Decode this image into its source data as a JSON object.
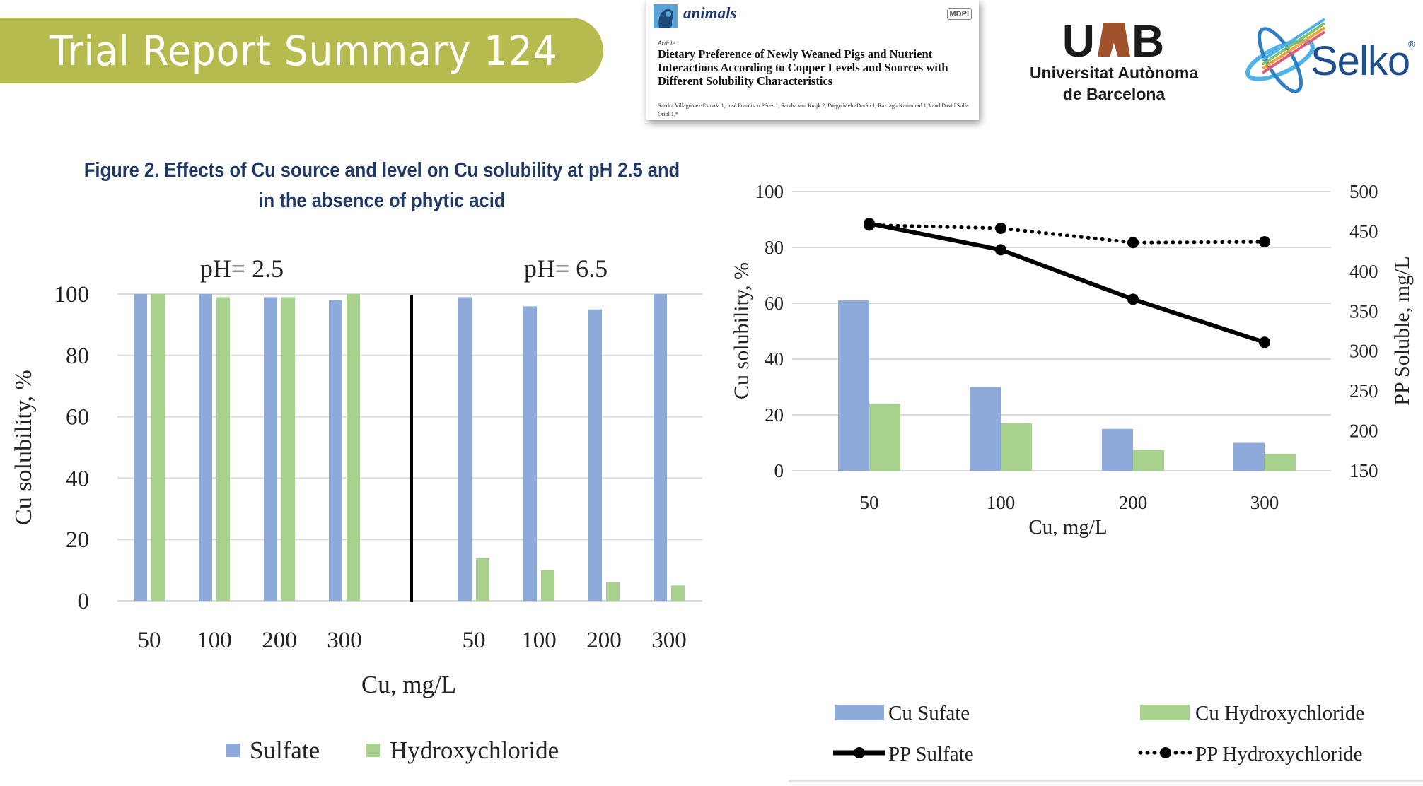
{
  "header": {
    "banner_title": "Trial Report Summary 124",
    "banner_color": "#b5bb4f"
  },
  "paper": {
    "journal": "animals",
    "publisher_badge": "MDPI",
    "type": "Article",
    "title": "Dietary Preference of Newly Weaned Pigs and Nutrient Interactions According to Copper Levels and Sources with Different Solubility Characteristics",
    "authors": "Sandra Villagómez-Estrada 1, José Francisco Pérez 1, Sandra van Kuijk 2, Diego Melo-Durán 1, Razzagh Karimirad 1,3 and David Solà-Oriol 1,*"
  },
  "logos": {
    "uab_mark": "UAB",
    "uab_name_line1": "Universitat Autònoma",
    "uab_name_line2": "de Barcelona",
    "selko_word": "Selko",
    "selko_reg": "®"
  },
  "figure": {
    "title_line1": "Figure 2. Effects of Cu source and level on Cu solubility at pH 2.5 and",
    "title_line2": "in the absence of phytic acid"
  },
  "colors": {
    "sulfate": "#8eaadb",
    "hydroxychloride": "#a9d18e",
    "line": "#000000",
    "grid": "#d9d9d9",
    "title": "#1f3864"
  },
  "chart_data": [
    {
      "type": "bar",
      "title": "",
      "groups": [
        "pH= 2.5",
        "pH= 6.5"
      ],
      "categories": [
        "50",
        "100",
        "200",
        "300",
        "50",
        "100",
        "200",
        "300"
      ],
      "series": [
        {
          "name": "Sulfate",
          "values": [
            100,
            100,
            99,
            98,
            99,
            96,
            95,
            100
          ]
        },
        {
          "name": "Hydroxychloride",
          "values": [
            100,
            99,
            99,
            100,
            14,
            10,
            6,
            5
          ]
        }
      ],
      "xlabel": "Cu, mg/L",
      "ylabel": "Cu solubility, %",
      "yticks": [
        "0",
        "20",
        "40",
        "60",
        "80",
        "100"
      ],
      "ylim": [
        0,
        100
      ],
      "grid": true,
      "legend_position": "bottom"
    },
    {
      "type": "bar+line",
      "title": "",
      "categories": [
        "50",
        "100",
        "200",
        "300"
      ],
      "series": [
        {
          "name": "Cu Sufate",
          "type": "bar",
          "axis": "left",
          "values": [
            61,
            30,
            15,
            10
          ]
        },
        {
          "name": "Cu Hydroxychloride",
          "type": "bar",
          "axis": "left",
          "values": [
            24,
            17,
            7.5,
            6
          ]
        },
        {
          "name": "PP Sulfate",
          "type": "line",
          "style": "solid",
          "axis": "right",
          "values": [
            460,
            427,
            365,
            311
          ]
        },
        {
          "name": "PP Hydroxychloride",
          "type": "line",
          "style": "dotted",
          "axis": "right",
          "values": [
            458,
            454,
            436,
            437
          ]
        }
      ],
      "xlabel": "Cu, mg/L",
      "ylabel": "Cu solubility, %",
      "ylabel_right": "PP Soluble, mg/L",
      "yticks": [
        "0",
        "20",
        "40",
        "60",
        "80",
        "100"
      ],
      "yticks_right": [
        "150",
        "200",
        "250",
        "300",
        "350",
        "400",
        "450",
        "500"
      ],
      "ylim": [
        0,
        100
      ],
      "ylim_right": [
        150,
        500
      ],
      "grid": true,
      "legend_position": "bottom"
    }
  ]
}
